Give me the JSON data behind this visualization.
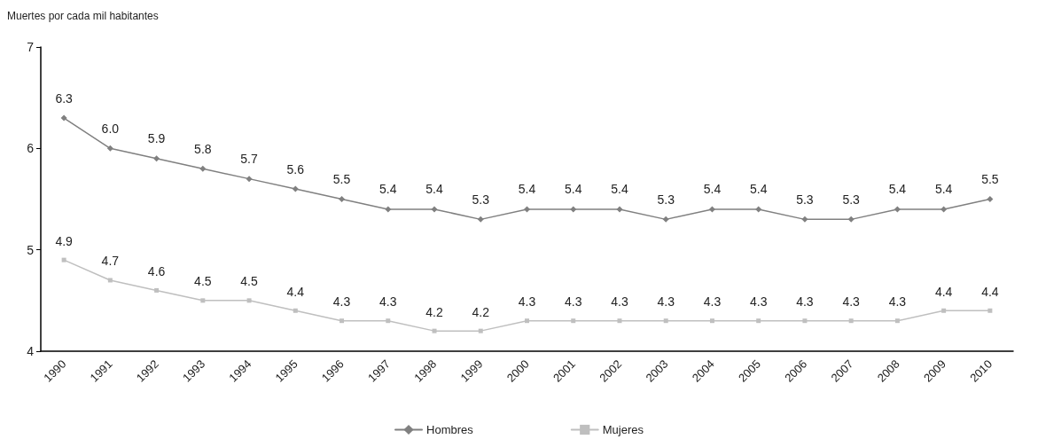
{
  "chart_data": {
    "type": "line",
    "ylabel": "Muertes por cada mil habitantes",
    "categories": [
      "1990",
      "1991",
      "1992",
      "1993",
      "1994",
      "1995",
      "1996",
      "1997",
      "1998",
      "1999",
      "2000",
      "2001",
      "2002",
      "2003",
      "2004",
      "2005",
      "2006",
      "2007",
      "2008",
      "2009",
      "2010"
    ],
    "series": [
      {
        "name": "Hombres",
        "color": "#808080",
        "marker": "diamond",
        "values": [
          6.3,
          6.0,
          5.9,
          5.8,
          5.7,
          5.6,
          5.5,
          5.4,
          5.4,
          5.3,
          5.4,
          5.4,
          5.4,
          5.3,
          5.4,
          5.4,
          5.3,
          5.3,
          5.4,
          5.4,
          5.5
        ],
        "value_labels": [
          "6.3",
          "6.0",
          "5.9",
          "5.8",
          "5.7",
          "5.6",
          "5.5",
          "5.4",
          "5.4",
          "5.3",
          "5.4",
          "5.4",
          "5.4",
          "5.3",
          "5.4",
          "5.4",
          "5.3",
          "5.3",
          "5.4",
          "5.4",
          "5.5"
        ]
      },
      {
        "name": "Mujeres",
        "color": "#bfbfbf",
        "marker": "square",
        "values": [
          4.9,
          4.7,
          4.6,
          4.5,
          4.5,
          4.4,
          4.3,
          4.3,
          4.2,
          4.2,
          4.3,
          4.3,
          4.3,
          4.3,
          4.3,
          4.3,
          4.3,
          4.3,
          4.3,
          4.4,
          4.4
        ],
        "value_labels": [
          "4.9",
          "4.7",
          "4.6",
          "4.5",
          "4.5",
          "4.4",
          "4.3",
          "4.3",
          "4.2",
          "4.2",
          "4.3",
          "4.3",
          "4.3",
          "4.3",
          "4.3",
          "4.3",
          "4.3",
          "4.3",
          "4.3",
          "4.4",
          "4.4"
        ]
      }
    ],
    "ylim": [
      4,
      7
    ],
    "yticks": [
      4,
      5,
      6,
      7
    ],
    "grid": false,
    "legend": "bottom",
    "line_style": "solid"
  }
}
